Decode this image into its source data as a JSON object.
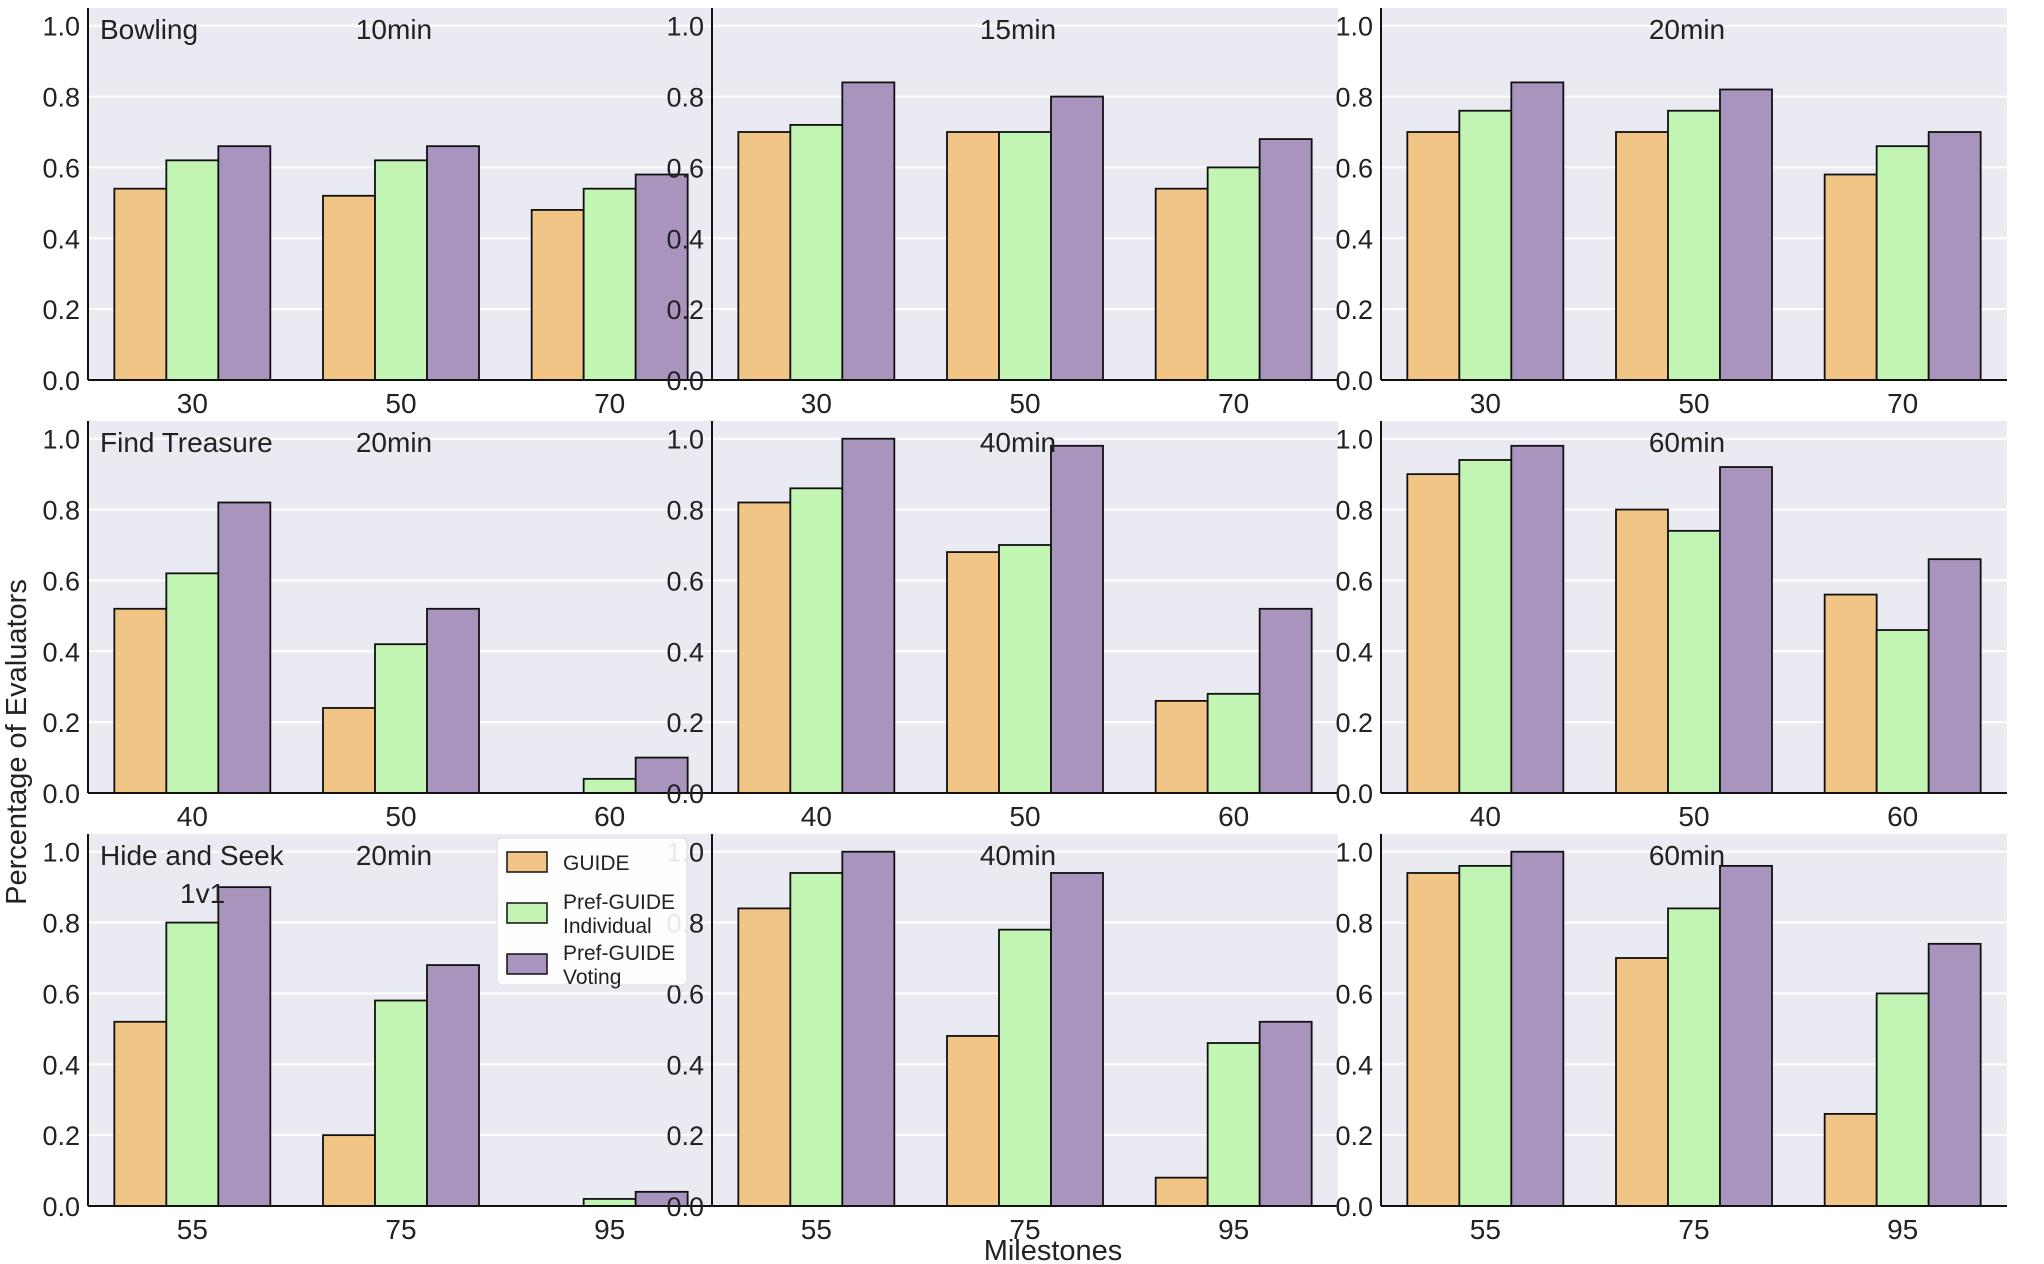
{
  "figure": {
    "ylabel": "Percentage of Evaluators",
    "xlabel": "Milestones"
  },
  "legend": {
    "items": [
      {
        "name": "GUIDE",
        "lines": [
          "GUIDE"
        ]
      },
      {
        "name": "Pref-GUIDE Individual",
        "lines": [
          "Pref-GUIDE",
          "Individual"
        ]
      },
      {
        "name": "Pref-GUIDE Voting",
        "lines": [
          "Pref-GUIDE",
          "Voting"
        ]
      }
    ]
  },
  "colors": {
    "GUIDE": "#f1c586",
    "Pref-GUIDE Individual": "#c2f5b4",
    "Pref-GUIDE Voting": "#a894bd",
    "panel_bg": "#eaeaf2",
    "grid": "#ffffff",
    "bar_edge": "#111111"
  },
  "chart_data": [
    {
      "type": "bar",
      "row": 0,
      "col": 0,
      "task_label": [
        "Bowling"
      ],
      "time_label": "10min",
      "categories": [
        "30",
        "50",
        "70"
      ],
      "ylim": [
        0,
        1.05
      ],
      "yticks": [
        "0.0",
        "0.2",
        "0.4",
        "0.6",
        "0.8",
        "1.0"
      ],
      "series": [
        {
          "name": "GUIDE",
          "values": [
            0.54,
            0.52,
            0.48
          ]
        },
        {
          "name": "Pref-GUIDE Individual",
          "values": [
            0.62,
            0.62,
            0.54
          ]
        },
        {
          "name": "Pref-GUIDE Voting",
          "values": [
            0.66,
            0.66,
            0.58
          ]
        }
      ]
    },
    {
      "type": "bar",
      "row": 0,
      "col": 1,
      "task_label": [],
      "time_label": "15min",
      "categories": [
        "30",
        "50",
        "70"
      ],
      "ylim": [
        0,
        1.05
      ],
      "yticks": [
        "0.0",
        "0.2",
        "0.4",
        "0.6",
        "0.8",
        "1.0"
      ],
      "series": [
        {
          "name": "GUIDE",
          "values": [
            0.7,
            0.7,
            0.54
          ]
        },
        {
          "name": "Pref-GUIDE Individual",
          "values": [
            0.72,
            0.7,
            0.6
          ]
        },
        {
          "name": "Pref-GUIDE Voting",
          "values": [
            0.84,
            0.8,
            0.68
          ]
        }
      ]
    },
    {
      "type": "bar",
      "row": 0,
      "col": 2,
      "task_label": [],
      "time_label": "20min",
      "categories": [
        "30",
        "50",
        "70"
      ],
      "ylim": [
        0,
        1.05
      ],
      "yticks": [
        "0.0",
        "0.2",
        "0.4",
        "0.6",
        "0.8",
        "1.0"
      ],
      "series": [
        {
          "name": "GUIDE",
          "values": [
            0.7,
            0.7,
            0.58
          ]
        },
        {
          "name": "Pref-GUIDE Individual",
          "values": [
            0.76,
            0.76,
            0.66
          ]
        },
        {
          "name": "Pref-GUIDE Voting",
          "values": [
            0.84,
            0.82,
            0.7
          ]
        }
      ]
    },
    {
      "type": "bar",
      "row": 1,
      "col": 0,
      "task_label": [
        "Find Treasure"
      ],
      "time_label": "20min",
      "categories": [
        "40",
        "50",
        "60"
      ],
      "ylim": [
        0,
        1.05
      ],
      "yticks": [
        "0.0",
        "0.2",
        "0.4",
        "0.6",
        "0.8",
        "1.0"
      ],
      "series": [
        {
          "name": "GUIDE",
          "values": [
            0.52,
            0.24,
            0.0
          ]
        },
        {
          "name": "Pref-GUIDE Individual",
          "values": [
            0.62,
            0.42,
            0.04
          ]
        },
        {
          "name": "Pref-GUIDE Voting",
          "values": [
            0.82,
            0.52,
            0.1
          ]
        }
      ]
    },
    {
      "type": "bar",
      "row": 1,
      "col": 1,
      "task_label": [],
      "time_label": "40min",
      "categories": [
        "40",
        "50",
        "60"
      ],
      "ylim": [
        0,
        1.05
      ],
      "yticks": [
        "0.0",
        "0.2",
        "0.4",
        "0.6",
        "0.8",
        "1.0"
      ],
      "series": [
        {
          "name": "GUIDE",
          "values": [
            0.82,
            0.68,
            0.26
          ]
        },
        {
          "name": "Pref-GUIDE Individual",
          "values": [
            0.86,
            0.7,
            0.28
          ]
        },
        {
          "name": "Pref-GUIDE Voting",
          "values": [
            1.0,
            0.98,
            0.52
          ]
        }
      ]
    },
    {
      "type": "bar",
      "row": 1,
      "col": 2,
      "task_label": [],
      "time_label": "60min",
      "categories": [
        "40",
        "50",
        "60"
      ],
      "ylim": [
        0,
        1.05
      ],
      "yticks": [
        "0.0",
        "0.2",
        "0.4",
        "0.6",
        "0.8",
        "1.0"
      ],
      "series": [
        {
          "name": "GUIDE",
          "values": [
            0.9,
            0.8,
            0.56
          ]
        },
        {
          "name": "Pref-GUIDE Individual",
          "values": [
            0.94,
            0.74,
            0.46
          ]
        },
        {
          "name": "Pref-GUIDE Voting",
          "values": [
            0.98,
            0.92,
            0.66
          ]
        }
      ]
    },
    {
      "type": "bar",
      "row": 2,
      "col": 0,
      "task_label": [
        "Hide and Seek",
        "1v1"
      ],
      "time_label": "20min",
      "categories": [
        "55",
        "75",
        "95"
      ],
      "ylim": [
        0,
        1.05
      ],
      "yticks": [
        "0.0",
        "0.2",
        "0.4",
        "0.6",
        "0.8",
        "1.0"
      ],
      "series": [
        {
          "name": "GUIDE",
          "values": [
            0.52,
            0.2,
            0.0
          ]
        },
        {
          "name": "Pref-GUIDE Individual",
          "values": [
            0.8,
            0.58,
            0.02
          ]
        },
        {
          "name": "Pref-GUIDE Voting",
          "values": [
            0.9,
            0.68,
            0.04
          ]
        }
      ]
    },
    {
      "type": "bar",
      "row": 2,
      "col": 1,
      "task_label": [],
      "time_label": "40min",
      "categories": [
        "55",
        "75",
        "95"
      ],
      "ylim": [
        0,
        1.05
      ],
      "yticks": [
        "0.0",
        "0.2",
        "0.4",
        "0.6",
        "0.8",
        "1.0"
      ],
      "series": [
        {
          "name": "GUIDE",
          "values": [
            0.84,
            0.48,
            0.08
          ]
        },
        {
          "name": "Pref-GUIDE Individual",
          "values": [
            0.94,
            0.78,
            0.46
          ]
        },
        {
          "name": "Pref-GUIDE Voting",
          "values": [
            1.0,
            0.94,
            0.52
          ]
        }
      ]
    },
    {
      "type": "bar",
      "row": 2,
      "col": 2,
      "task_label": [],
      "time_label": "60min",
      "categories": [
        "55",
        "75",
        "95"
      ],
      "ylim": [
        0,
        1.05
      ],
      "yticks": [
        "0.0",
        "0.2",
        "0.4",
        "0.6",
        "0.8",
        "1.0"
      ],
      "series": [
        {
          "name": "GUIDE",
          "values": [
            0.94,
            0.7,
            0.26
          ]
        },
        {
          "name": "Pref-GUIDE Individual",
          "values": [
            0.96,
            0.84,
            0.6
          ]
        },
        {
          "name": "Pref-GUIDE Voting",
          "values": [
            1.0,
            0.96,
            0.74
          ]
        }
      ]
    }
  ]
}
